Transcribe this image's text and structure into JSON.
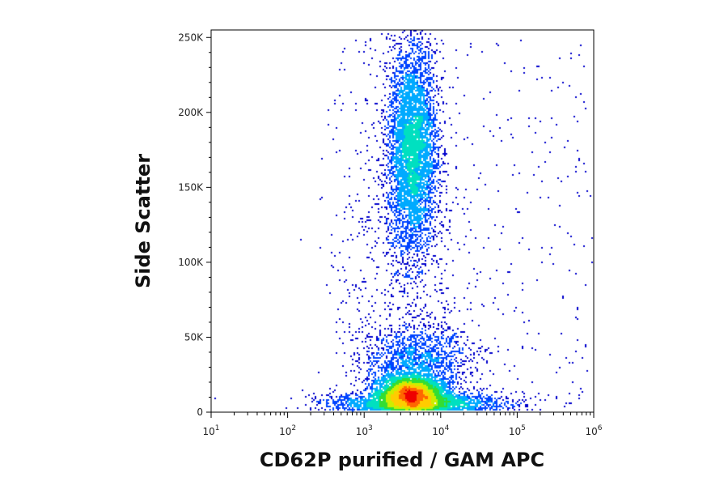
{
  "chart_data": {
    "type": "scatter",
    "style": "density-heatmap (flow cytometry dot plot)",
    "xlabel": "CD62P purified / GAM APC",
    "ylabel": "Side Scatter",
    "x_scale": "log",
    "xlim": [
      10,
      1000000
    ],
    "ylim": [
      0,
      255000
    ],
    "x_ticks": [
      {
        "value": 10,
        "base": "10",
        "exp": "1"
      },
      {
        "value": 100,
        "base": "10",
        "exp": "2"
      },
      {
        "value": 1000,
        "base": "10",
        "exp": "3"
      },
      {
        "value": 10000,
        "base": "10",
        "exp": "4"
      },
      {
        "value": 100000,
        "base": "10",
        "exp": "5"
      },
      {
        "value": 1000000,
        "base": "10",
        "exp": "6"
      }
    ],
    "y_ticks": [
      {
        "value": 0,
        "label": "0"
      },
      {
        "value": 50000,
        "label": "50K"
      },
      {
        "value": 100000,
        "label": "100K"
      },
      {
        "value": 150000,
        "label": "150K"
      },
      {
        "value": 200000,
        "label": "200K"
      },
      {
        "value": 250000,
        "label": "250K"
      }
    ],
    "populations": [
      {
        "center_x": 4000,
        "center_y": 12000,
        "spread_log10_x": 0.22,
        "spread_y": 6000,
        "count": 5200
      },
      {
        "center_x": 5000,
        "center_y": 6000,
        "spread_log10_x": 0.55,
        "spread_y": 3500,
        "count": 2200
      },
      {
        "center_x": 5000,
        "center_y": 35000,
        "spread_log10_x": 0.35,
        "spread_y": 12000,
        "count": 1400
      },
      {
        "center_x": 4300,
        "center_y": 175000,
        "spread_log10_x": 0.16,
        "spread_y": 35000,
        "count": 4800
      },
      {
        "center_x": 3500,
        "center_y": 90000,
        "spread_log10_x": 0.45,
        "spread_y": 70000,
        "count": 700
      }
    ],
    "density_colors": [
      "#0000cc",
      "#0044ff",
      "#00aaff",
      "#00e0c0",
      "#33dd33",
      "#ccee00",
      "#ffcc00",
      "#ff6600",
      "#ee0000"
    ],
    "grid": false,
    "legend": "none"
  }
}
